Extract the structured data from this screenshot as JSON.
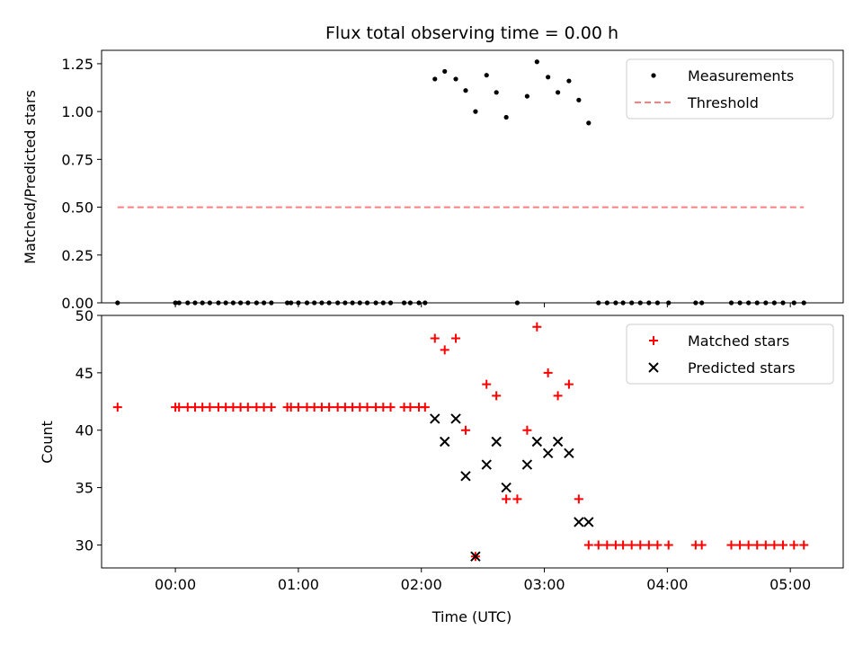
{
  "chart_data": [
    {
      "type": "scatter",
      "panel": "top",
      "title": "Flux total observing time = 0.00 h",
      "ylabel": "Matched/Predicted stars",
      "xlabel": "",
      "xlim": [
        -0.6,
        5.43
      ],
      "ylim": [
        0,
        1.32
      ],
      "x_ticks": [
        0,
        1,
        2,
        3,
        4,
        5
      ],
      "x_tick_labels": [
        "00:00",
        "01:00",
        "02:00",
        "03:00",
        "04:00",
        "05:00"
      ],
      "y_ticks": [
        0.0,
        0.25,
        0.5,
        0.75,
        1.0,
        1.25
      ],
      "y_tick_labels": [
        "0.00",
        "0.25",
        "0.50",
        "0.75",
        "1.00",
        "1.25"
      ],
      "grid": false,
      "legend_position": "top-right",
      "legend": [
        "Measurements",
        "Threshold"
      ],
      "colors": {
        "measurements": "#000000",
        "threshold": "#ff7f7f"
      },
      "series": [
        {
          "name": "Measurements",
          "style": "dot",
          "points": [
            [
              -0.47,
              0
            ],
            [
              0.0,
              0
            ],
            [
              0.03,
              0
            ],
            [
              0.1,
              0
            ],
            [
              0.16,
              0
            ],
            [
              0.22,
              0
            ],
            [
              0.28,
              0
            ],
            [
              0.35,
              0
            ],
            [
              0.41,
              0
            ],
            [
              0.47,
              0
            ],
            [
              0.53,
              0
            ],
            [
              0.59,
              0
            ],
            [
              0.66,
              0
            ],
            [
              0.72,
              0
            ],
            [
              0.78,
              0
            ],
            [
              0.91,
              0
            ],
            [
              0.94,
              0
            ],
            [
              1.0,
              0
            ],
            [
              1.07,
              0
            ],
            [
              1.13,
              0
            ],
            [
              1.19,
              0
            ],
            [
              1.25,
              0
            ],
            [
              1.32,
              0
            ],
            [
              1.38,
              0
            ],
            [
              1.44,
              0
            ],
            [
              1.5,
              0
            ],
            [
              1.56,
              0
            ],
            [
              1.63,
              0
            ],
            [
              1.69,
              0
            ],
            [
              1.75,
              0
            ],
            [
              1.86,
              0
            ],
            [
              1.91,
              0
            ],
            [
              1.98,
              0
            ],
            [
              2.03,
              0
            ],
            [
              2.11,
              1.17
            ],
            [
              2.19,
              1.21
            ],
            [
              2.28,
              1.17
            ],
            [
              2.36,
              1.11
            ],
            [
              2.44,
              1.0
            ],
            [
              2.53,
              1.19
            ],
            [
              2.61,
              1.1
            ],
            [
              2.69,
              0.97
            ],
            [
              2.78,
              0
            ],
            [
              2.86,
              1.08
            ],
            [
              2.94,
              1.26
            ],
            [
              3.03,
              1.18
            ],
            [
              3.11,
              1.1
            ],
            [
              3.2,
              1.16
            ],
            [
              3.28,
              1.06
            ],
            [
              3.36,
              0.94
            ],
            [
              3.44,
              0
            ],
            [
              3.51,
              0
            ],
            [
              3.58,
              0
            ],
            [
              3.64,
              0
            ],
            [
              3.71,
              0
            ],
            [
              3.78,
              0
            ],
            [
              3.85,
              0
            ],
            [
              3.92,
              0
            ],
            [
              4.01,
              0
            ],
            [
              4.23,
              0
            ],
            [
              4.28,
              0
            ],
            [
              4.52,
              0
            ],
            [
              4.59,
              0
            ],
            [
              4.66,
              0
            ],
            [
              4.73,
              0
            ],
            [
              4.8,
              0
            ],
            [
              4.87,
              0
            ],
            [
              4.94,
              0
            ],
            [
              5.03,
              0
            ],
            [
              5.11,
              0
            ]
          ]
        },
        {
          "name": "Threshold",
          "style": "dashed-line",
          "points": [
            [
              -0.47,
              0.5
            ],
            [
              5.11,
              0.5
            ]
          ]
        }
      ]
    },
    {
      "type": "scatter",
      "panel": "bottom",
      "title": "",
      "ylabel": "Count",
      "xlabel": "Time (UTC)",
      "xlim": [
        -0.6,
        5.43
      ],
      "ylim": [
        28,
        50
      ],
      "x_ticks": [
        0,
        1,
        2,
        3,
        4,
        5
      ],
      "x_tick_labels": [
        "00:00",
        "01:00",
        "02:00",
        "03:00",
        "04:00",
        "05:00"
      ],
      "y_ticks": [
        30,
        35,
        40,
        45,
        50
      ],
      "y_tick_labels": [
        "30",
        "35",
        "40",
        "45",
        "50"
      ],
      "grid": false,
      "legend_position": "top-right",
      "legend": [
        "Matched stars",
        "Predicted stars"
      ],
      "colors": {
        "matched": "#ff0000",
        "predicted": "#000000"
      },
      "series": [
        {
          "name": "Matched stars",
          "style": "plus",
          "points": [
            [
              -0.47,
              42
            ],
            [
              0.0,
              42
            ],
            [
              0.03,
              42
            ],
            [
              0.1,
              42
            ],
            [
              0.16,
              42
            ],
            [
              0.22,
              42
            ],
            [
              0.28,
              42
            ],
            [
              0.35,
              42
            ],
            [
              0.41,
              42
            ],
            [
              0.47,
              42
            ],
            [
              0.53,
              42
            ],
            [
              0.59,
              42
            ],
            [
              0.66,
              42
            ],
            [
              0.72,
              42
            ],
            [
              0.78,
              42
            ],
            [
              0.91,
              42
            ],
            [
              0.94,
              42
            ],
            [
              1.0,
              42
            ],
            [
              1.07,
              42
            ],
            [
              1.13,
              42
            ],
            [
              1.19,
              42
            ],
            [
              1.25,
              42
            ],
            [
              1.32,
              42
            ],
            [
              1.38,
              42
            ],
            [
              1.44,
              42
            ],
            [
              1.5,
              42
            ],
            [
              1.56,
              42
            ],
            [
              1.63,
              42
            ],
            [
              1.69,
              42
            ],
            [
              1.75,
              42
            ],
            [
              1.86,
              42
            ],
            [
              1.91,
              42
            ],
            [
              1.98,
              42
            ],
            [
              2.03,
              42
            ],
            [
              2.11,
              48
            ],
            [
              2.19,
              47
            ],
            [
              2.28,
              48
            ],
            [
              2.36,
              40
            ],
            [
              2.44,
              29
            ],
            [
              2.53,
              44
            ],
            [
              2.61,
              43
            ],
            [
              2.69,
              34
            ],
            [
              2.78,
              34
            ],
            [
              2.86,
              40
            ],
            [
              2.94,
              49
            ],
            [
              3.03,
              45
            ],
            [
              3.11,
              43
            ],
            [
              3.2,
              44
            ],
            [
              3.28,
              34
            ],
            [
              3.36,
              30
            ],
            [
              3.44,
              30
            ],
            [
              3.51,
              30
            ],
            [
              3.58,
              30
            ],
            [
              3.64,
              30
            ],
            [
              3.71,
              30
            ],
            [
              3.78,
              30
            ],
            [
              3.85,
              30
            ],
            [
              3.92,
              30
            ],
            [
              4.01,
              30
            ],
            [
              4.23,
              30
            ],
            [
              4.28,
              30
            ],
            [
              4.52,
              30
            ],
            [
              4.59,
              30
            ],
            [
              4.66,
              30
            ],
            [
              4.73,
              30
            ],
            [
              4.8,
              30
            ],
            [
              4.87,
              30
            ],
            [
              4.94,
              30
            ],
            [
              5.03,
              30
            ],
            [
              5.11,
              30
            ]
          ]
        },
        {
          "name": "Predicted stars",
          "style": "x",
          "points": [
            [
              2.11,
              41
            ],
            [
              2.19,
              39
            ],
            [
              2.28,
              41
            ],
            [
              2.36,
              36
            ],
            [
              2.44,
              29
            ],
            [
              2.53,
              37
            ],
            [
              2.61,
              39
            ],
            [
              2.69,
              35
            ],
            [
              2.86,
              37
            ],
            [
              2.94,
              39
            ],
            [
              3.03,
              38
            ],
            [
              3.11,
              39
            ],
            [
              3.2,
              38
            ],
            [
              3.28,
              32
            ],
            [
              3.36,
              32
            ]
          ]
        }
      ]
    }
  ]
}
